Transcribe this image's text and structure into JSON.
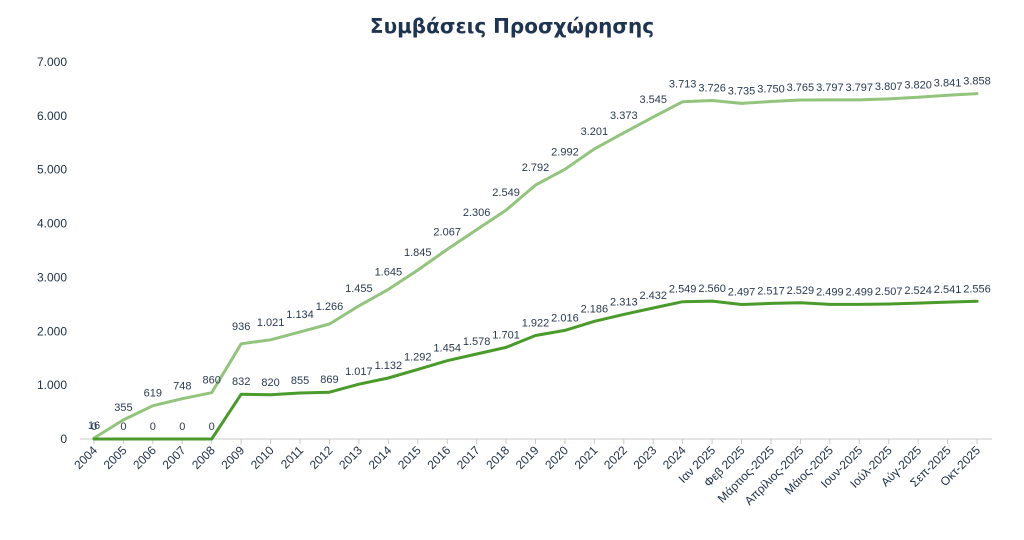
{
  "chart_data": {
    "type": "line",
    "title": "Συμβάσεις Προσχώρησης",
    "xlabel": "",
    "ylabel": "",
    "ylim": [
      0,
      7000
    ],
    "yticks": [
      0,
      1000,
      2000,
      3000,
      4000,
      5000,
      6000,
      7000
    ],
    "ytick_labels": [
      "0",
      "1.000",
      "2.000",
      "3.000",
      "4.000",
      "5.000",
      "6.000",
      "7.000"
    ],
    "legend": "none",
    "grid": false,
    "categories": [
      "2004",
      "2005",
      "2006",
      "2007",
      "2008",
      "2009",
      "2010",
      "2011",
      "2012",
      "2013",
      "2014",
      "2015",
      "2016",
      "2017",
      "2018",
      "2019",
      "2020",
      "2021",
      "2022",
      "2023",
      "2024",
      "Ιαν 2025",
      "Φεβ 2025",
      "Μάρτιος-2025",
      "Απρίλιος-2025",
      "Μάιος-2025",
      "Ιουν-2025",
      "Ιούλ-2025",
      "Αύγ-2025",
      "Σεπ-2025",
      "Οκτ-2025"
    ],
    "series": [
      {
        "color": "#93c47d",
        "values": [
          16,
          355,
          619,
          748,
          860,
          1768,
          1841,
          1989,
          2135,
          2472,
          2777,
          3137,
          3521,
          3884,
          4250,
          4714,
          5008,
          5387,
          5686,
          5977,
          6262,
          6286,
          6232,
          6267,
          6294,
          6296,
          6296,
          6314,
          6344,
          6382,
          6414
        ],
        "labels": [
          "16",
          "355",
          "619",
          "748",
          "860",
          "936",
          "1.021",
          "1.134",
          "1.266",
          "1.455",
          "1.645",
          "1.845",
          "2.067",
          "2.306",
          "2.549",
          "2.792",
          "2.992",
          "3.201",
          "3.373",
          "3.545",
          "3.713",
          "3.726",
          "3.735",
          "3.750",
          "3.765",
          "3.797",
          "3.797",
          "3.807",
          "3.820",
          "3.841",
          "3.858"
        ]
      },
      {
        "color": "#4a9a2c",
        "values": [
          0,
          0,
          0,
          0,
          0,
          832,
          820,
          855,
          869,
          1017,
          1132,
          1292,
          1454,
          1578,
          1701,
          1922,
          2016,
          2186,
          2313,
          2432,
          2549,
          2560,
          2497,
          2517,
          2529,
          2499,
          2499,
          2507,
          2524,
          2541,
          2556
        ],
        "labels": [
          "0",
          "0",
          "0",
          "0",
          "0",
          "832",
          "820",
          "855",
          "869",
          "1.017",
          "1.132",
          "1.292",
          "1.454",
          "1.578",
          "1.701",
          "1.922",
          "2.016",
          "2.186",
          "2.313",
          "2.432",
          "2.549",
          "2.560",
          "2.497",
          "2.517",
          "2.529",
          "2.499",
          "2.499",
          "2.507",
          "2.524",
          "2.541",
          "2.556"
        ]
      }
    ]
  }
}
